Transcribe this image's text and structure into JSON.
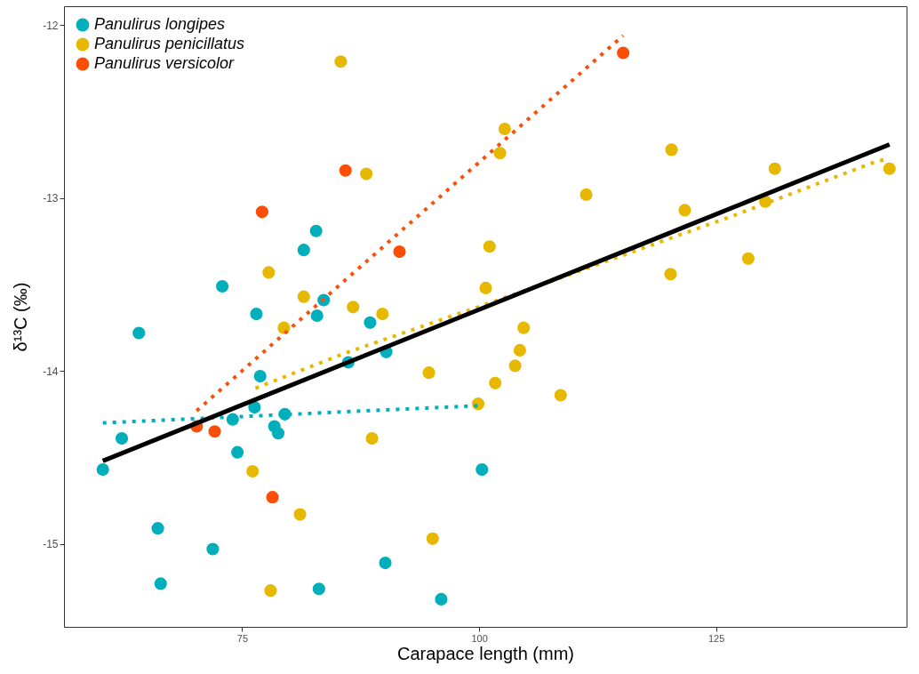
{
  "chart_data": {
    "type": "scatter",
    "xlabel": "Carapace length (mm)",
    "ylabel": "δ¹³C (‰)",
    "xlim": [
      56.2,
      145.1
    ],
    "ylim": [
      -15.48,
      -11.89
    ],
    "xticks": [
      75,
      100,
      125
    ],
    "yticks": [
      -15,
      -14,
      -13,
      -12
    ],
    "legend": "top left",
    "marker": "circle",
    "series": [
      {
        "name": "Panulirus longipes",
        "color": "#00afbb",
        "x": [
          60.3,
          62.3,
          64.1,
          66.1,
          66.4,
          71.9,
          72.9,
          74.0,
          74.5,
          76.3,
          76.5,
          76.9,
          78.4,
          78.8,
          79.5,
          81.5,
          82.8,
          82.9,
          83.1,
          83.6,
          86.2,
          88.5,
          90.1,
          90.2,
          96.0,
          100.3
        ],
        "values": [
          -14.57,
          -14.39,
          -13.78,
          -14.91,
          -15.23,
          -15.03,
          -13.51,
          -14.28,
          -14.47,
          -14.21,
          -13.67,
          -14.03,
          -14.32,
          -14.36,
          -14.25,
          -13.3,
          -13.19,
          -13.68,
          -15.26,
          -13.59,
          -13.95,
          -13.72,
          -15.11,
          -13.89,
          -15.32,
          -14.57
        ]
      },
      {
        "name": "Panulirus penicillatus",
        "color": "#e7b800",
        "x": [
          85.4,
          88.1,
          77.8,
          81.5,
          86.7,
          89.8,
          79.4,
          88.7,
          76.1,
          81.1,
          95.1,
          78.0,
          94.7,
          99.9,
          101.1,
          100.7,
          101.7,
          102.7,
          102.2,
          104.7,
          104.3,
          103.8,
          108.6,
          111.3,
          120.3,
          120.2,
          121.7,
          128.4,
          130.2,
          131.2,
          143.3
        ],
        "values": [
          -12.21,
          -12.86,
          -13.43,
          -13.57,
          -13.63,
          -13.67,
          -13.75,
          -14.39,
          -14.58,
          -14.83,
          -14.97,
          -15.27,
          -14.01,
          -14.19,
          -13.28,
          -13.52,
          -14.07,
          -12.6,
          -12.74,
          -13.75,
          -13.88,
          -13.97,
          -14.14,
          -12.98,
          -12.72,
          -13.44,
          -13.07,
          -13.35,
          -13.02,
          -12.83,
          -12.83
        ]
      },
      {
        "name": "Panulirus versicolor",
        "color": "#fc4e07",
        "x": [
          70.2,
          72.1,
          77.1,
          78.2,
          85.9,
          91.6,
          115.2
        ],
        "values": [
          -14.32,
          -14.35,
          -13.08,
          -14.73,
          -12.84,
          -13.31,
          -12.16
        ]
      },
      {
        "color": "#00afbb",
        "type": "line",
        "marker": "none",
        "line_style": "dotted",
        "x": [
          60.3,
          100.3
        ],
        "values": [
          -14.3,
          -14.2
        ]
      },
      {
        "color": "#e7b800",
        "type": "line",
        "marker": "none",
        "line_style": "dotted",
        "x": [
          76.4,
          85.7,
          105.1,
          114.7,
          127.4,
          141.8,
          143.3
        ],
        "values": [
          -14.1,
          -13.9,
          -13.53,
          -13.34,
          -13.09,
          -12.79,
          -12.77
        ]
      },
      {
        "color": "#fc4e07",
        "type": "line",
        "marker": "none",
        "line_style": "dotted",
        "x": [
          70.2,
          115.2
        ],
        "values": [
          -14.23,
          -12.06
        ]
      },
      {
        "color": "#000000",
        "type": "line",
        "marker": "none",
        "line_style": "solid",
        "x": [
          60.3,
          143.3
        ],
        "values": [
          -14.52,
          -12.69
        ]
      }
    ]
  }
}
